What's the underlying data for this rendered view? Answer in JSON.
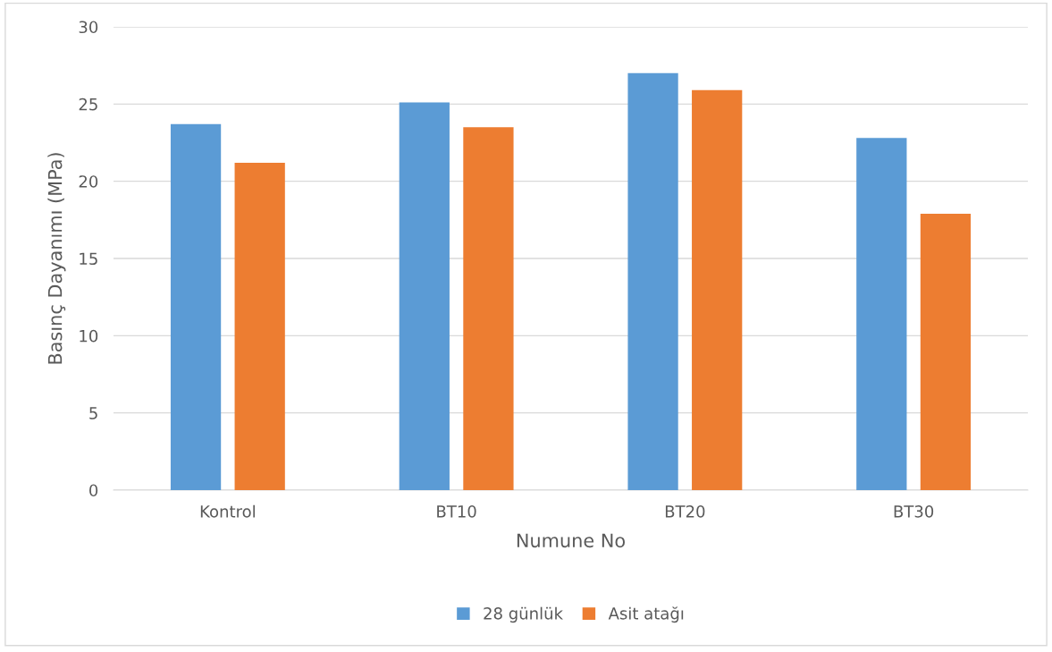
{
  "chart_data": {
    "type": "bar",
    "xlabel": "Numune No",
    "ylabel": "Basınç Dayanımı (MPa)",
    "categories": [
      "Kontrol",
      "BT10",
      "BT20",
      "BT30"
    ],
    "series": [
      {
        "name": "28 günlük",
        "color": "#5b9bd5",
        "values": [
          23.7,
          25.1,
          27.0,
          22.8
        ]
      },
      {
        "name": "Asit atağı",
        "color": "#ed7d31",
        "values": [
          21.2,
          23.5,
          25.9,
          17.9
        ]
      }
    ],
    "ylim": [
      0,
      30
    ],
    "yticks": [
      0,
      5,
      10,
      15,
      20,
      25,
      30
    ],
    "grid": "y",
    "legend": "bottom"
  }
}
